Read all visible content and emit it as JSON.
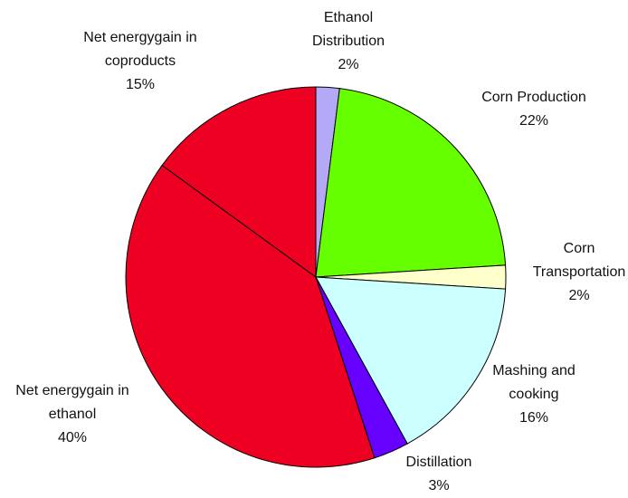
{
  "chart_data": {
    "type": "pie",
    "categories": [
      "Ethanol\nDistribution",
      "Corn Production",
      "Corn\nTransportation",
      "Mashing and\ncooking",
      "Distillation",
      "Net energygain in\nethanol",
      "Net energygain in\ncoproducts"
    ],
    "values": [
      2,
      22,
      2,
      16,
      3,
      40,
      15
    ],
    "value_labels": [
      "2%",
      "22%",
      "2%",
      "16%",
      "3%",
      "40%",
      "15%"
    ],
    "colors": [
      "#b3a9f7",
      "#66ff00",
      "#ffffcc",
      "#ccffff",
      "#6600ff",
      "#ee0022",
      "#ee0022"
    ]
  }
}
